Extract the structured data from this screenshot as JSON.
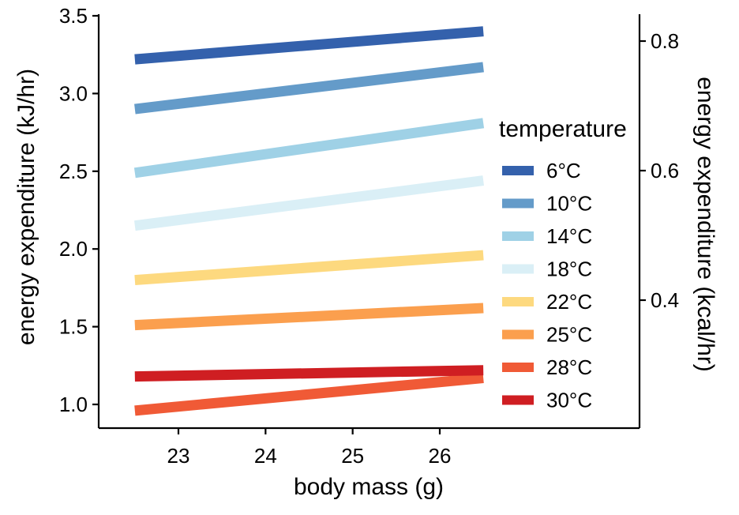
{
  "chart_data": {
    "type": "line",
    "xlabel": "body mass (g)",
    "ylabel": "energy expenditure (kJ/hr)",
    "ylabel_right": "energy expenditure (kcal/hr)",
    "xlim": [
      22.1,
      28.2
    ],
    "ylim": [
      0.85,
      3.52
    ],
    "x_ticks": [
      23,
      24,
      25,
      26
    ],
    "y_ticks": [
      1.0,
      1.5,
      2.0,
      2.5,
      3.0,
      3.5
    ],
    "y_ticks_right": [
      0.4,
      0.6,
      0.8
    ],
    "y_tick_labels": [
      "1.0",
      "1.5",
      "2.0",
      "2.5",
      "3.0",
      "3.5"
    ],
    "y_tick_labels_right": [
      "0.4",
      "0.6",
      "0.8"
    ],
    "grid": false,
    "legend": {
      "title": "temperature",
      "placement": "right"
    },
    "series": [
      {
        "name": "6°C",
        "color": "#3461ac",
        "x": [
          22.5,
          26.5
        ],
        "y": [
          3.22,
          3.4
        ]
      },
      {
        "name": "10°C",
        "color": "#649bc9",
        "x": [
          22.5,
          26.5
        ],
        "y": [
          2.9,
          3.17
        ]
      },
      {
        "name": "14°C",
        "color": "#9fd1e6",
        "x": [
          22.5,
          26.5
        ],
        "y": [
          2.49,
          2.81
        ]
      },
      {
        "name": "18°C",
        "color": "#daeff6",
        "x": [
          22.5,
          26.5
        ],
        "y": [
          2.15,
          2.44
        ]
      },
      {
        "name": "22°C",
        "color": "#fdd97f",
        "x": [
          22.5,
          26.5
        ],
        "y": [
          1.8,
          1.96
        ]
      },
      {
        "name": "25°C",
        "color": "#fb9f4e",
        "x": [
          22.5,
          26.5
        ],
        "y": [
          1.51,
          1.62
        ]
      },
      {
        "name": "28°C",
        "color": "#f05a36",
        "x": [
          22.5,
          26.5
        ],
        "y": [
          0.96,
          1.17
        ]
      },
      {
        "name": "30°C",
        "color": "#cf1e22",
        "x": [
          22.5,
          26.5
        ],
        "y": [
          1.18,
          1.22
        ]
      }
    ]
  }
}
